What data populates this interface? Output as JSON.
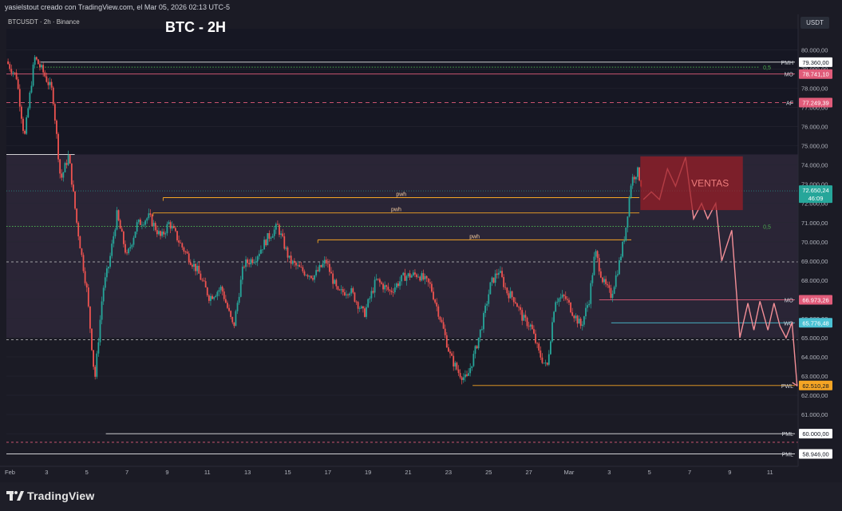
{
  "header": {
    "caption": "yasielstout creado con TradingView.com, el Mar 05, 2026 02:13 UTC-5"
  },
  "footer": {
    "brand": "TradingView"
  },
  "chart_data": {
    "type": "candlestick",
    "symbol_info": "BTCUSDT · 2h · Binance",
    "title": "BTC - 2H",
    "currency": "USDT",
    "ylim": [
      58300,
      81100
    ],
    "y_ticks": [
      59000,
      60000,
      61000,
      62000,
      63000,
      64000,
      65000,
      66000,
      67000,
      68000,
      69000,
      70000,
      71000,
      72000,
      73000,
      74000,
      75000,
      76000,
      77000,
      78000,
      79000,
      80000
    ],
    "y_tick_labels": [
      "59.000,00",
      "60.000,00",
      "61.000,00",
      "62.000,00",
      "63.000,00",
      "64.000,00",
      "65.000,00",
      "66.000,00",
      "67.000,00",
      "68.000,00",
      "69.000,00",
      "70.000,00",
      "71.000,00",
      "72.000,00",
      "73.000,00",
      "74.000,00",
      "75.000,00",
      "76.000,00",
      "77.000,00",
      "78.000,00",
      "79.000,00",
      "80.000,00"
    ],
    "x_domain": [
      0.5,
      39.9
    ],
    "x_ticks": [
      {
        "day": 0.5,
        "label": "Feb"
      },
      {
        "day": 2.5,
        "label": "3"
      },
      {
        "day": 4.5,
        "label": "5"
      },
      {
        "day": 6.5,
        "label": "7"
      },
      {
        "day": 8.5,
        "label": "9"
      },
      {
        "day": 10.5,
        "label": "11"
      },
      {
        "day": 12.5,
        "label": "13"
      },
      {
        "day": 14.5,
        "label": "15"
      },
      {
        "day": 16.5,
        "label": "17"
      },
      {
        "day": 18.5,
        "label": "19"
      },
      {
        "day": 20.5,
        "label": "21"
      },
      {
        "day": 22.5,
        "label": "23"
      },
      {
        "day": 24.5,
        "label": "25"
      },
      {
        "day": 26.5,
        "label": "27"
      },
      {
        "day": 28.5,
        "label": "Mar"
      },
      {
        "day": 30.5,
        "label": "3"
      },
      {
        "day": 32.5,
        "label": "5"
      },
      {
        "day": 34.5,
        "label": "7"
      },
      {
        "day": 36.5,
        "label": "9"
      },
      {
        "day": 38.5,
        "label": "11"
      }
    ],
    "candle_anchors": [
      [
        0.5,
        79400
      ],
      [
        1.0,
        78600
      ],
      [
        1.4,
        75400
      ],
      [
        1.9,
        79600
      ],
      [
        2.3,
        78900
      ],
      [
        2.8,
        77800
      ],
      [
        3.2,
        73200
      ],
      [
        3.6,
        74500
      ],
      [
        4.0,
        71000
      ],
      [
        4.5,
        67500
      ],
      [
        4.9,
        62800
      ],
      [
        5.3,
        67500
      ],
      [
        5.6,
        68800
      ],
      [
        6.0,
        71400
      ],
      [
        6.5,
        69200
      ],
      [
        7.0,
        70900
      ],
      [
        7.6,
        71300
      ],
      [
        8.2,
        70200
      ],
      [
        8.6,
        71000
      ],
      [
        9.2,
        69800
      ],
      [
        10.0,
        68500
      ],
      [
        10.6,
        67100
      ],
      [
        11.2,
        67600
      ],
      [
        11.8,
        65500
      ],
      [
        12.3,
        68800
      ],
      [
        12.9,
        69200
      ],
      [
        13.5,
        70200
      ],
      [
        14.0,
        70800
      ],
      [
        14.6,
        69000
      ],
      [
        15.2,
        68500
      ],
      [
        15.8,
        68200
      ],
      [
        16.4,
        69000
      ],
      [
        17.0,
        67300
      ],
      [
        17.6,
        67500
      ],
      [
        18.3,
        66200
      ],
      [
        18.9,
        68000
      ],
      [
        19.6,
        67400
      ],
      [
        20.3,
        68200
      ],
      [
        21.0,
        68300
      ],
      [
        21.6,
        67700
      ],
      [
        22.1,
        66000
      ],
      [
        22.6,
        64000
      ],
      [
        23.0,
        63200
      ],
      [
        23.4,
        62800
      ],
      [
        23.8,
        64200
      ],
      [
        24.2,
        65800
      ],
      [
        24.6,
        67800
      ],
      [
        25.0,
        68500
      ],
      [
        25.4,
        67400
      ],
      [
        25.8,
        67000
      ],
      [
        26.2,
        66000
      ],
      [
        26.6,
        65600
      ],
      [
        27.0,
        64200
      ],
      [
        27.4,
        63400
      ],
      [
        27.8,
        67000
      ],
      [
        28.3,
        67100
      ],
      [
        28.7,
        66300
      ],
      [
        29.1,
        65600
      ],
      [
        29.5,
        67000
      ],
      [
        29.8,
        69500
      ],
      [
        30.2,
        67900
      ],
      [
        30.6,
        67200
      ],
      [
        31.0,
        68900
      ],
      [
        31.3,
        70500
      ],
      [
        31.6,
        73200
      ],
      [
        31.9,
        73700
      ],
      [
        32.1,
        73000
      ]
    ],
    "projection": [
      [
        32.2,
        72200
      ],
      [
        32.6,
        72600
      ],
      [
        33.0,
        72200
      ],
      [
        33.4,
        73800
      ],
      [
        33.8,
        72900
      ],
      [
        34.3,
        74400
      ],
      [
        34.7,
        71200
      ],
      [
        35.1,
        72000
      ],
      [
        35.4,
        71200
      ],
      [
        35.8,
        72000
      ],
      [
        36.1,
        69000
      ],
      [
        36.6,
        70600
      ],
      [
        37.0,
        65000
      ],
      [
        37.4,
        66800
      ],
      [
        37.7,
        65400
      ],
      [
        38.0,
        66900
      ],
      [
        38.4,
        65400
      ],
      [
        38.7,
        66800
      ],
      [
        39.0,
        65600
      ],
      [
        39.3,
        65000
      ],
      [
        39.6,
        65800
      ],
      [
        39.85,
        62500
      ]
    ],
    "zones": [
      {
        "label": "VENTAS",
        "x0": 32.05,
        "x1": 37.15,
        "y0": 71650,
        "y1": 74450,
        "fill": "#9c1d26",
        "text_color": "#ef7e7e"
      }
    ],
    "boxes": [
      {
        "x0": 0.5,
        "x1": 39.9,
        "y0": 74550,
        "y1": 81100,
        "fill": "#161723"
      },
      {
        "x0": 0.5,
        "x1": 39.9,
        "y0": 65000,
        "y1": 74550,
        "fill": "#2a2536"
      }
    ],
    "levels": [
      {
        "price": 79360,
        "tag": "PMH",
        "label": "79.360,00",
        "color": "#e8e8e8",
        "style": "solid",
        "x0": 2.2,
        "tag_bg": "#ffffff",
        "tag_fg": "#131722"
      },
      {
        "price": 78741.1,
        "tag": "MO",
        "label": "78.741,10",
        "color": "#e15c7a",
        "style": "solid",
        "x0": 0.5,
        "tag_bg": "#e15c7a",
        "tag_fg": "#ffffff"
      },
      {
        "price": 77249.39,
        "tag": "AF",
        "label": "77.249,39",
        "color": "#e15c7a",
        "style": "dashed",
        "x0": 0.5,
        "tag_bg": "#e15c7a",
        "tag_fg": "#ffffff"
      },
      {
        "price": 66973.26,
        "tag": "MO",
        "label": "66.973,26",
        "color": "#e15c7a",
        "style": "solid",
        "x0": 30.0,
        "tag_bg": "#e15c7a",
        "tag_fg": "#ffffff"
      },
      {
        "price": 65776.48,
        "tag": "WO",
        "label": "65.776,48",
        "color": "#4bc2d4",
        "style": "solid",
        "x0": 30.6,
        "tag_bg": "#4bc2d4",
        "tag_fg": "#ffffff"
      },
      {
        "price": 62510.28,
        "tag": "PWL",
        "label": "62.510,28",
        "color": "#f5a524",
        "style": "solid",
        "x0": 23.7,
        "tag_bg": "#f5a524",
        "tag_fg": "#131722"
      },
      {
        "price": 60000,
        "tag": "PML",
        "label": "60.000,00",
        "color": "#e8e8e8",
        "style": "solid",
        "x0": 5.45,
        "tag_bg": "#ffffff",
        "tag_fg": "#131722"
      },
      {
        "price": 58946,
        "tag": "PML",
        "label": "58.946,00",
        "color": "#e8e8e8",
        "style": "solid",
        "x0": 0.5,
        "tag_bg": "#ffffff",
        "tag_fg": "#131722"
      }
    ],
    "current_price": {
      "label": "72.650,24",
      "timer": "46:09",
      "price": 72650.24,
      "color": "#26a69a"
    },
    "pwh_lines": [
      {
        "label": "pwh",
        "price": 72300,
        "x0": 8.3,
        "x1": 32.0
      },
      {
        "label": "pwh",
        "price": 71500,
        "x0": 7.8,
        "x1": 32.0
      },
      {
        "label": "pwh",
        "price": 70100,
        "x0": 16.0,
        "x1": 31.6
      }
    ],
    "fib_lines": [
      {
        "label": "0,5",
        "price": 79100,
        "x0": 2.0,
        "x1": 38.0
      },
      {
        "label": "0,5",
        "price": 70800,
        "x0": 0.5,
        "x1": 38.0
      }
    ],
    "misc_lines": [
      {
        "price": 74550,
        "x0": 0.5,
        "x1": 3.9,
        "color": "#e8e8e8",
        "style": "solid"
      },
      {
        "price": 68950,
        "x0": 0.5,
        "x1": 39.9,
        "color": "#c8c8c8",
        "style": "dashed"
      },
      {
        "price": 64900,
        "x0": 0.5,
        "x1": 39.9,
        "color": "#c8c8c8",
        "style": "dashed"
      },
      {
        "price": 59550,
        "x0": 0.5,
        "x1": 39.9,
        "color": "#e15c7a",
        "style": "dashed"
      }
    ],
    "colors": {
      "up": "#26a69a",
      "down": "#ef5350",
      "projection": "#f48f97",
      "pwh": "#f5a524",
      "fib": "#4caf50"
    }
  }
}
